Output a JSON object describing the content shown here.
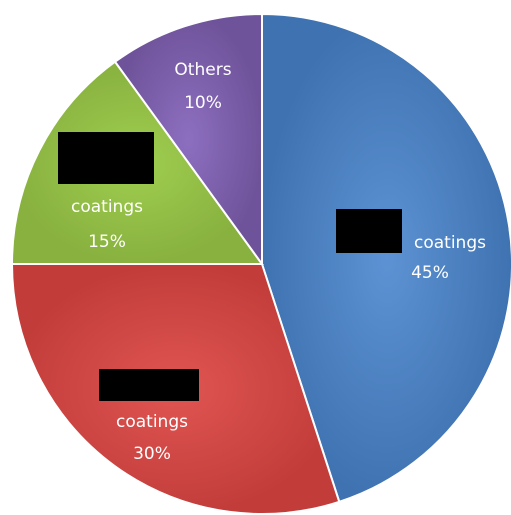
{
  "chart_data": {
    "type": "pie",
    "start_angle_deg": 0,
    "direction": "clockwise",
    "slices": [
      {
        "label": "coatings",
        "value": 45,
        "value_label": "45%",
        "color": "#4a7ebb",
        "redacted": true
      },
      {
        "label": "coatings",
        "value": 30,
        "value_label": "30%",
        "color": "#c0504d",
        "redacted": true
      },
      {
        "label": "coatings",
        "value": 15,
        "value_label": "15%",
        "color": "#9bbb59",
        "redacted": true
      },
      {
        "label": "Others",
        "value": 10,
        "value_label": "10%",
        "color": "#8064a2",
        "redacted": false
      }
    ]
  }
}
